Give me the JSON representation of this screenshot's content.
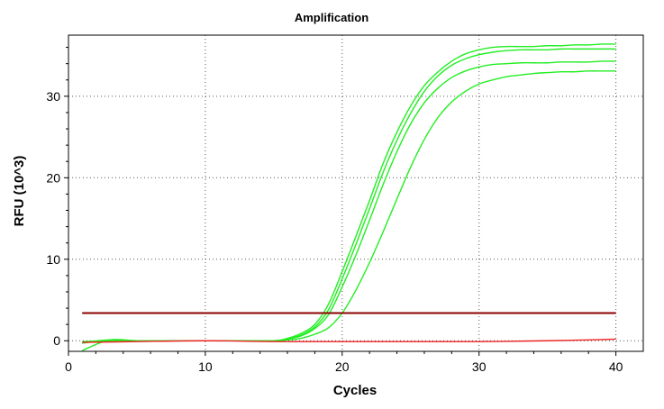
{
  "chart_data": {
    "type": "line",
    "title": "Amplification",
    "xlabel": "Cycles",
    "ylabel": "RFU (10^3)",
    "xlim": [
      0,
      42
    ],
    "ylim": [
      -1.3,
      37.5
    ],
    "xticks": [
      0,
      10,
      20,
      30,
      40
    ],
    "yticks": [
      0,
      10,
      20,
      30
    ],
    "xtick_labels": [
      "0",
      "10",
      "20",
      "30",
      "40"
    ],
    "ytick_labels": [
      "0",
      "10",
      "20",
      "30"
    ],
    "grid": true,
    "threshold": {
      "y": 3.4,
      "x_start": 1,
      "x_end": 40,
      "color": "#8b0000"
    },
    "series": [
      {
        "color": "#22ee22",
        "x": [
          1,
          3,
          5,
          8,
          12,
          15,
          16,
          17,
          18,
          19,
          20,
          21,
          22,
          23,
          24,
          25,
          26,
          27,
          28,
          29,
          30,
          31,
          32,
          33,
          34,
          35,
          36,
          37,
          38,
          39,
          40
        ],
        "y": [
          -0.2,
          0.1,
          0.0,
          0.0,
          0.0,
          0.0,
          0.3,
          0.9,
          2.0,
          4.5,
          8.5,
          12.8,
          17.2,
          21.8,
          25.6,
          28.8,
          31.3,
          33.0,
          34.3,
          35.2,
          35.7,
          36.0,
          36.1,
          36.1,
          36.1,
          36.2,
          36.2,
          36.3,
          36.3,
          36.4,
          36.4
        ]
      },
      {
        "color": "#22ee22",
        "x": [
          1,
          3,
          5,
          8,
          12,
          15,
          16,
          17,
          18,
          19,
          20,
          21,
          22,
          23,
          24,
          25,
          26,
          27,
          28,
          29,
          30,
          31,
          32,
          33,
          34,
          35,
          36,
          37,
          38,
          39,
          40
        ],
        "y": [
          -0.1,
          0.0,
          0.0,
          0.0,
          0.0,
          0.0,
          0.2,
          0.7,
          1.7,
          3.8,
          7.6,
          11.8,
          16.2,
          20.7,
          24.6,
          27.9,
          30.6,
          32.5,
          33.8,
          34.6,
          35.1,
          35.4,
          35.6,
          35.7,
          35.7,
          35.7,
          35.8,
          35.8,
          35.8,
          35.8,
          35.8
        ]
      },
      {
        "color": "#22ee22",
        "x": [
          1,
          3,
          5,
          8,
          12,
          15,
          16,
          17,
          18,
          19,
          20,
          21,
          22,
          23,
          24,
          25,
          26,
          27,
          28,
          29,
          30,
          31,
          32,
          33,
          34,
          35,
          36,
          37,
          38,
          39,
          40
        ],
        "y": [
          -0.3,
          0.1,
          0.0,
          0.0,
          0.0,
          0.0,
          0.2,
          0.6,
          1.5,
          3.2,
          6.6,
          10.5,
          14.8,
          19.2,
          23.2,
          26.6,
          29.2,
          31.0,
          32.3,
          33.1,
          33.6,
          33.9,
          34.0,
          34.1,
          34.1,
          34.1,
          34.2,
          34.2,
          34.2,
          34.3,
          34.3
        ]
      },
      {
        "color": "#22ee22",
        "x": [
          1,
          3,
          5,
          8,
          12,
          15,
          16,
          17,
          18,
          19,
          20,
          21,
          22,
          23,
          24,
          25,
          26,
          27,
          28,
          29,
          30,
          31,
          32,
          33,
          34,
          35,
          36,
          37,
          38,
          39,
          40
        ],
        "y": [
          -1.2,
          0.1,
          0.0,
          0.0,
          0.0,
          0.0,
          0.1,
          0.3,
          0.8,
          1.6,
          3.4,
          6.2,
          9.6,
          13.4,
          17.4,
          21.3,
          24.7,
          27.4,
          29.3,
          30.6,
          31.5,
          32.0,
          32.4,
          32.6,
          32.8,
          32.9,
          33.0,
          33.0,
          33.1,
          33.1,
          33.1
        ]
      },
      {
        "color": "#ee2222",
        "x": [
          1,
          5,
          10,
          15,
          20,
          25,
          30,
          35,
          38,
          40
        ],
        "y": [
          -0.2,
          -0.1,
          0.0,
          -0.1,
          -0.1,
          -0.1,
          -0.1,
          0.0,
          0.1,
          0.2
        ]
      }
    ]
  }
}
